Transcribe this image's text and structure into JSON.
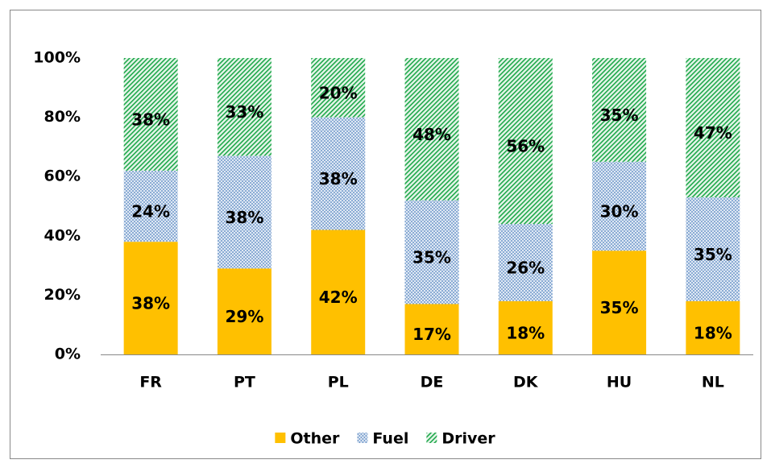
{
  "chart_data": {
    "type": "stacked_bar",
    "categories": [
      "FR",
      "PT",
      "PL",
      "DE",
      "DK",
      "HU",
      "NL"
    ],
    "series": [
      {
        "name": "Other",
        "color": "#ffc000",
        "pattern": "solid",
        "values": [
          38,
          29,
          42,
          17,
          18,
          35,
          18
        ],
        "value_labels": [
          "38%",
          "29%",
          "42%",
          "17%",
          "18%",
          "35%",
          "18%"
        ]
      },
      {
        "name": "Fuel",
        "color": "#4f81bd",
        "pattern": "dots",
        "values": [
          24,
          38,
          38,
          35,
          26,
          30,
          35
        ],
        "value_labels": [
          "24%",
          "38%",
          "38%",
          "35%",
          "26%",
          "30%",
          "35%"
        ]
      },
      {
        "name": "Driver",
        "color": "#1ea84a",
        "pattern": "hatch",
        "values": [
          38,
          33,
          20,
          48,
          56,
          35,
          47
        ],
        "value_labels": [
          "38%",
          "33%",
          "20%",
          "48%",
          "56%",
          "35%",
          "47%"
        ]
      }
    ],
    "ylim": [
      0,
      100
    ],
    "yticks": [
      {
        "value": 0,
        "label": "0%"
      },
      {
        "value": 20,
        "label": "20%"
      },
      {
        "value": 40,
        "label": "40%"
      },
      {
        "value": 60,
        "label": "60%"
      },
      {
        "value": 80,
        "label": "80%"
      },
      {
        "value": 100,
        "label": "100%"
      }
    ],
    "legend": "bottom"
  }
}
